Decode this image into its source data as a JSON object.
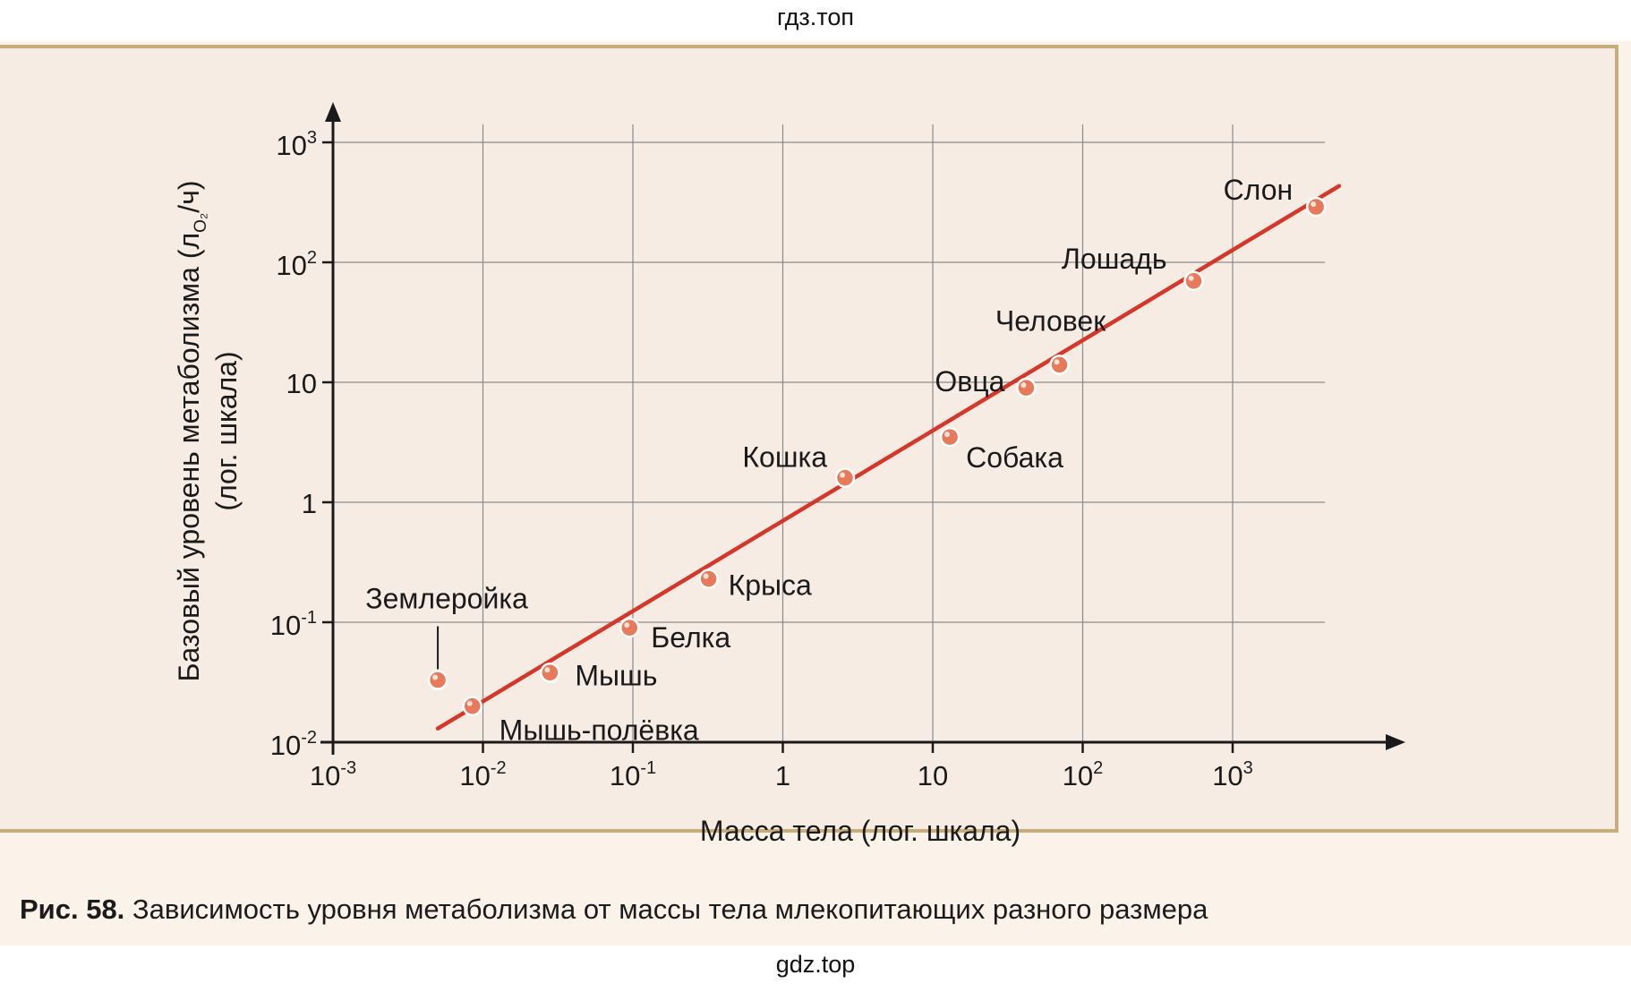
{
  "watermarks": {
    "top": "гдз.топ",
    "bottom": "gdz.top"
  },
  "caption": {
    "number": "Рис. 58.",
    "text": "Зависимость уровня метаболизма от массы тела млекопитающих разного размера"
  },
  "colors": {
    "line": "#d6372b",
    "point": "#e87a5c",
    "point_stroke": "#ffffff",
    "grid": "#8a8a8a",
    "axis": "#1a1a1a",
    "panel_border": "#c7ac7c"
  },
  "chart_data": {
    "type": "scatter",
    "scale": {
      "x": "log",
      "y": "log"
    },
    "grid": true,
    "xlabel": "Масса тела (лог. шкала)",
    "ylabel": "Базовый уровень метаболизма (л",
    "ylabel_sub": "O₂",
    "ylabel_tail": "/ч)",
    "ylabel2": "(лог. шкала)",
    "xlim": [
      0.001,
      20000
    ],
    "ylim": [
      0.01,
      2000
    ],
    "x_ticks": [
      {
        "value": 0.001,
        "base": "10",
        "exp": "-3"
      },
      {
        "value": 0.01,
        "base": "10",
        "exp": "-2"
      },
      {
        "value": 0.1,
        "base": "10",
        "exp": "-1"
      },
      {
        "value": 1,
        "base": "1",
        "exp": ""
      },
      {
        "value": 10,
        "base": "10",
        "exp": ""
      },
      {
        "value": 100,
        "base": "10",
        "exp": "2"
      },
      {
        "value": 1000,
        "base": "10",
        "exp": "3"
      }
    ],
    "y_ticks": [
      {
        "value": 0.01,
        "base": "10",
        "exp": "-2"
      },
      {
        "value": 0.1,
        "base": "10",
        "exp": "-1"
      },
      {
        "value": 1,
        "base": "1",
        "exp": ""
      },
      {
        "value": 10,
        "base": "10",
        "exp": ""
      },
      {
        "value": 100,
        "base": "10",
        "exp": "2"
      },
      {
        "value": 1000,
        "base": "10",
        "exp": "3"
      }
    ],
    "points": [
      {
        "label": "Землеройка",
        "x": 0.005,
        "y": 0.033
      },
      {
        "label": "Мышь-полёвка",
        "x": 0.0085,
        "y": 0.02
      },
      {
        "label": "Мышь",
        "x": 0.028,
        "y": 0.038
      },
      {
        "label": "Белка",
        "x": 0.095,
        "y": 0.09
      },
      {
        "label": "Крыса",
        "x": 0.32,
        "y": 0.23
      },
      {
        "label": "Кошка",
        "x": 2.6,
        "y": 1.6
      },
      {
        "label": "Собака",
        "x": 13,
        "y": 3.5
      },
      {
        "label": "Овца",
        "x": 42,
        "y": 9
      },
      {
        "label": "Человек",
        "x": 70,
        "y": 14
      },
      {
        "label": "Лошадь",
        "x": 550,
        "y": 70
      },
      {
        "label": "Слон",
        "x": 3600,
        "y": 290
      }
    ],
    "trend_line": {
      "x": [
        0.005,
        4000
      ],
      "y": [
        0.013,
        340
      ]
    }
  }
}
